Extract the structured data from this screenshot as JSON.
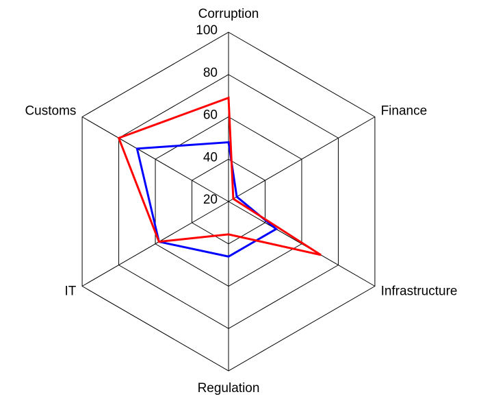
{
  "chart_data": {
    "type": "radar",
    "categories": [
      "Corruption",
      "Finance",
      "Infrastructure",
      "Regulation",
      "IT",
      "Customs"
    ],
    "series": [
      {
        "color": "#0000ff",
        "values": [
          48,
          24.5,
          46,
          46,
          58,
          70
        ]
      },
      {
        "color": "#ff0000",
        "values": [
          69,
          22.6,
          70.5,
          35.5,
          58,
          80
        ]
      }
    ],
    "ylim": [
      20,
      100
    ],
    "yticks": [
      20,
      40,
      60,
      80,
      100
    ],
    "grid": true
  }
}
